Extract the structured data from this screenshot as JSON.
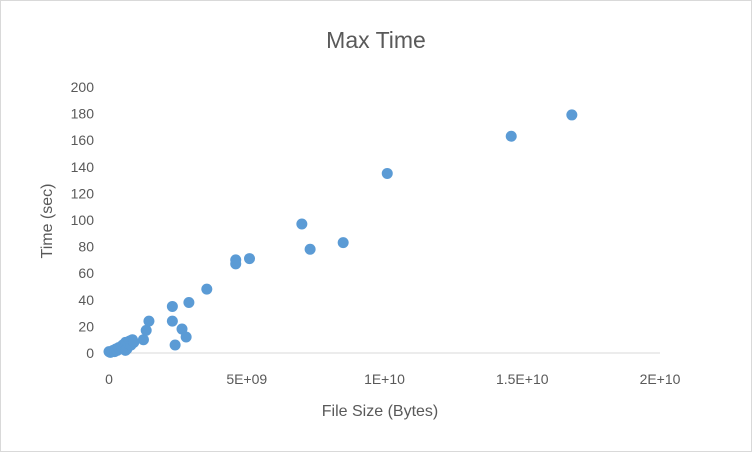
{
  "chart_data": {
    "type": "scatter",
    "title": "Max Time",
    "xlabel": "File Size (Bytes)",
    "ylabel": "Time (sec)",
    "xlim": [
      0,
      20000000000
    ],
    "ylim": [
      0,
      200
    ],
    "x_ticks": [
      0,
      5000000000,
      10000000000,
      15000000000,
      20000000000
    ],
    "x_tick_labels": [
      "0",
      "5E+09",
      "1E+10",
      "1.5E+10",
      "2E+10"
    ],
    "y_ticks": [
      0,
      20,
      40,
      60,
      80,
      100,
      120,
      140,
      160,
      180,
      200
    ],
    "y_tick_labels": [
      "0",
      "20",
      "40",
      "60",
      "80",
      "100",
      "120",
      "140",
      "160",
      "180",
      "200"
    ],
    "grid": false,
    "legend": "none",
    "marker_color": "#5B9BD5",
    "series": [
      {
        "points": [
          [
            0,
            1
          ],
          [
            50000000,
            0.5
          ],
          [
            100000000,
            1
          ],
          [
            150000000,
            2
          ],
          [
            200000000,
            1
          ],
          [
            250000000,
            3
          ],
          [
            300000000,
            2
          ],
          [
            350000000,
            4
          ],
          [
            400000000,
            3
          ],
          [
            450000000,
            5
          ],
          [
            500000000,
            6
          ],
          [
            550000000,
            4
          ],
          [
            600000000,
            8
          ],
          [
            600000000,
            2
          ],
          [
            650000000,
            3
          ],
          [
            700000000,
            7
          ],
          [
            750000000,
            9
          ],
          [
            800000000,
            6
          ],
          [
            850000000,
            10
          ],
          [
            900000000,
            8
          ],
          [
            1250000000,
            10
          ],
          [
            1350000000,
            17
          ],
          [
            1450000000,
            24
          ],
          [
            2300000000,
            35
          ],
          [
            2300000000,
            24
          ],
          [
            2400000000,
            6
          ],
          [
            2650000000,
            18
          ],
          [
            2800000000,
            12
          ],
          [
            2900000000,
            38
          ],
          [
            3550000000,
            48
          ],
          [
            4600000000,
            70
          ],
          [
            4600000000,
            67
          ],
          [
            5100000000,
            71
          ],
          [
            7000000000,
            97
          ],
          [
            7300000000,
            78
          ],
          [
            8500000000,
            83
          ],
          [
            10100000000,
            135
          ],
          [
            14600000000,
            163
          ],
          [
            16800000000,
            179
          ]
        ]
      }
    ]
  }
}
